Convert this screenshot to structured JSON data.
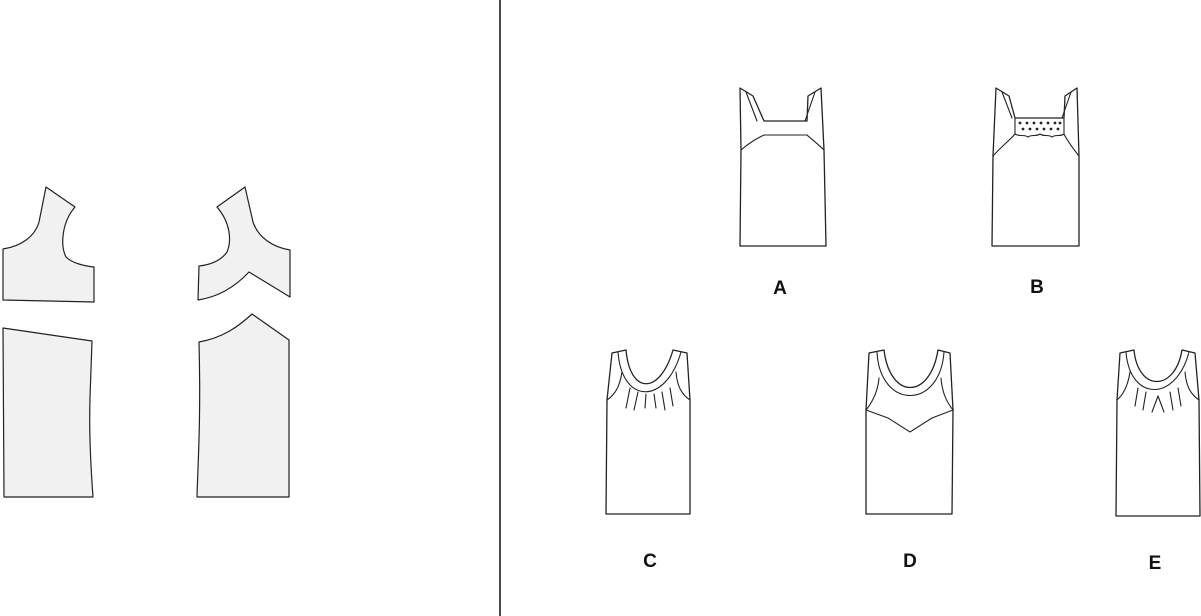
{
  "colors": {
    "background": "#ffffff",
    "piece_fill": "#f1f1f1",
    "line": "#222222",
    "divider": "#4a4a4a"
  },
  "left_panel": {
    "pieces": [
      {
        "name": "front-yoke-piece"
      },
      {
        "name": "front-body-piece"
      },
      {
        "name": "contrast-yoke-piece"
      },
      {
        "name": "contrast-body-piece"
      }
    ]
  },
  "right_panel": {
    "views": [
      {
        "id": "A",
        "label": "A",
        "style": "square neckline with straight yoke band"
      },
      {
        "id": "B",
        "label": "B",
        "style": "square neckline with smocked panel"
      },
      {
        "id": "C",
        "label": "C",
        "style": "scoop neckline with gathers"
      },
      {
        "id": "D",
        "label": "D",
        "style": "scoop neckline with pointed contrast yoke"
      },
      {
        "id": "E",
        "label": "E",
        "style": "scoop neckline with gathers and center tie"
      }
    ]
  }
}
